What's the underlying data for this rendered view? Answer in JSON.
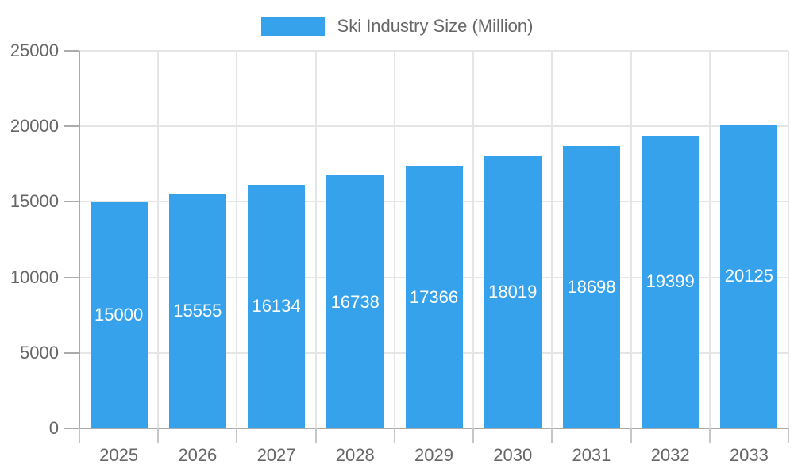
{
  "legend": {
    "label": "Ski Industry Size (Million)"
  },
  "chart_data": {
    "type": "bar",
    "title": "",
    "xlabel": "",
    "ylabel": "",
    "categories": [
      "2025",
      "2026",
      "2027",
      "2028",
      "2029",
      "2030",
      "2031",
      "2032",
      "2033"
    ],
    "series": [
      {
        "name": "Ski Industry Size (Million)",
        "color": "#36A2EB",
        "values": [
          15000,
          15555,
          16134,
          16738,
          17366,
          18019,
          18698,
          19399,
          20125
        ]
      }
    ],
    "bar_labels": {
      "show": true,
      "color": "#ffffff",
      "position": "center"
    },
    "ylim": [
      0,
      25000
    ],
    "yticks": [
      0,
      5000,
      10000,
      15000,
      20000,
      25000
    ],
    "grid": true,
    "legend_position": "top",
    "colors": {
      "grid": "#e5e5e5",
      "axis": "#ababab",
      "tick_mark": "#c6c6c6",
      "tick_text": "#666666",
      "background": "#ffffff"
    }
  }
}
